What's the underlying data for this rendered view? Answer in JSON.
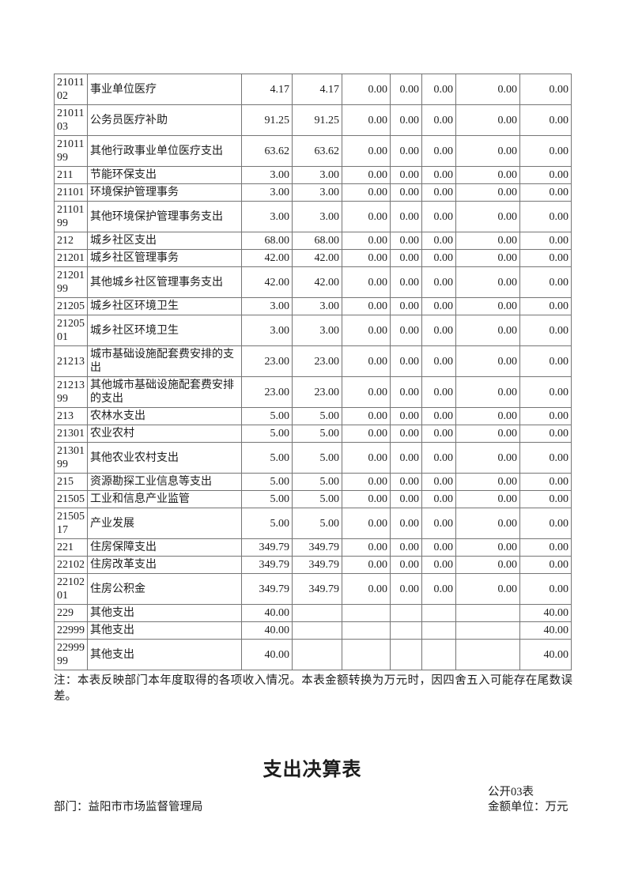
{
  "table": {
    "rows": [
      {
        "code": "2101102",
        "name": "事业单位医疗",
        "values": [
          "4.17",
          "4.17",
          "0.00",
          "0.00",
          "0.00",
          "0.00",
          "0.00"
        ]
      },
      {
        "code": "2101103",
        "name": "公务员医疗补助",
        "values": [
          "91.25",
          "91.25",
          "0.00",
          "0.00",
          "0.00",
          "0.00",
          "0.00"
        ]
      },
      {
        "code": "2101199",
        "name": "其他行政事业单位医疗支出",
        "values": [
          "63.62",
          "63.62",
          "0.00",
          "0.00",
          "0.00",
          "0.00",
          "0.00"
        ]
      },
      {
        "code": "211",
        "name": "节能环保支出",
        "values": [
          "3.00",
          "3.00",
          "0.00",
          "0.00",
          "0.00",
          "0.00",
          "0.00"
        ]
      },
      {
        "code": "21101",
        "name": "环境保护管理事务",
        "values": [
          "3.00",
          "3.00",
          "0.00",
          "0.00",
          "0.00",
          "0.00",
          "0.00"
        ]
      },
      {
        "code": "2110199",
        "name": "其他环境保护管理事务支出",
        "values": [
          "3.00",
          "3.00",
          "0.00",
          "0.00",
          "0.00",
          "0.00",
          "0.00"
        ]
      },
      {
        "code": "212",
        "name": "城乡社区支出",
        "values": [
          "68.00",
          "68.00",
          "0.00",
          "0.00",
          "0.00",
          "0.00",
          "0.00"
        ]
      },
      {
        "code": "21201",
        "name": "城乡社区管理事务",
        "values": [
          "42.00",
          "42.00",
          "0.00",
          "0.00",
          "0.00",
          "0.00",
          "0.00"
        ]
      },
      {
        "code": "2120199",
        "name": "其他城乡社区管理事务支出",
        "values": [
          "42.00",
          "42.00",
          "0.00",
          "0.00",
          "0.00",
          "0.00",
          "0.00"
        ]
      },
      {
        "code": "21205",
        "name": "城乡社区环境卫生",
        "values": [
          "3.00",
          "3.00",
          "0.00",
          "0.00",
          "0.00",
          "0.00",
          "0.00"
        ]
      },
      {
        "code": "2120501",
        "name": "城乡社区环境卫生",
        "values": [
          "3.00",
          "3.00",
          "0.00",
          "0.00",
          "0.00",
          "0.00",
          "0.00"
        ]
      },
      {
        "code": "21213",
        "name": "城市基础设施配套费安排的支出",
        "values": [
          "23.00",
          "23.00",
          "0.00",
          "0.00",
          "0.00",
          "0.00",
          "0.00"
        ]
      },
      {
        "code": "2121399",
        "name": "其他城市基础设施配套费安排的支出",
        "values": [
          "23.00",
          "23.00",
          "0.00",
          "0.00",
          "0.00",
          "0.00",
          "0.00"
        ]
      },
      {
        "code": "213",
        "name": "农林水支出",
        "values": [
          "5.00",
          "5.00",
          "0.00",
          "0.00",
          "0.00",
          "0.00",
          "0.00"
        ]
      },
      {
        "code": "21301",
        "name": "农业农村",
        "values": [
          "5.00",
          "5.00",
          "0.00",
          "0.00",
          "0.00",
          "0.00",
          "0.00"
        ]
      },
      {
        "code": "2130199",
        "name": "其他农业农村支出",
        "values": [
          "5.00",
          "5.00",
          "0.00",
          "0.00",
          "0.00",
          "0.00",
          "0.00"
        ]
      },
      {
        "code": "215",
        "name": "资源勘探工业信息等支出",
        "values": [
          "5.00",
          "5.00",
          "0.00",
          "0.00",
          "0.00",
          "0.00",
          "0.00"
        ]
      },
      {
        "code": "21505",
        "name": "工业和信息产业监管",
        "values": [
          "5.00",
          "5.00",
          "0.00",
          "0.00",
          "0.00",
          "0.00",
          "0.00"
        ]
      },
      {
        "code": "2150517",
        "name": "产业发展",
        "values": [
          "5.00",
          "5.00",
          "0.00",
          "0.00",
          "0.00",
          "0.00",
          "0.00"
        ]
      },
      {
        "code": "221",
        "name": "住房保障支出",
        "values": [
          "349.79",
          "349.79",
          "0.00",
          "0.00",
          "0.00",
          "0.00",
          "0.00"
        ]
      },
      {
        "code": "22102",
        "name": "住房改革支出",
        "values": [
          "349.79",
          "349.79",
          "0.00",
          "0.00",
          "0.00",
          "0.00",
          "0.00"
        ]
      },
      {
        "code": "2210201",
        "name": "住房公积金",
        "values": [
          "349.79",
          "349.79",
          "0.00",
          "0.00",
          "0.00",
          "0.00",
          "0.00"
        ]
      },
      {
        "code": "229",
        "name": "其他支出",
        "values": [
          "40.00",
          "",
          "",
          "",
          "",
          "",
          "40.00"
        ]
      },
      {
        "code": "22999",
        "name": "其他支出",
        "values": [
          "40.00",
          "",
          "",
          "",
          "",
          "",
          "40.00"
        ]
      },
      {
        "code": "2299999",
        "name": "其他支出",
        "values": [
          "40.00",
          "",
          "",
          "",
          "",
          "",
          "40.00"
        ]
      }
    ]
  },
  "note": "注：本表反映部门本年度取得的各项收入情况。本表金额转换为万元时，因四舍五入可能存在尾数误差。",
  "next_section": {
    "title": "支出决算表",
    "table_code": "公开03表",
    "department": "部门：益阳市市场监督管理局",
    "unit": "金额单位：万元"
  }
}
